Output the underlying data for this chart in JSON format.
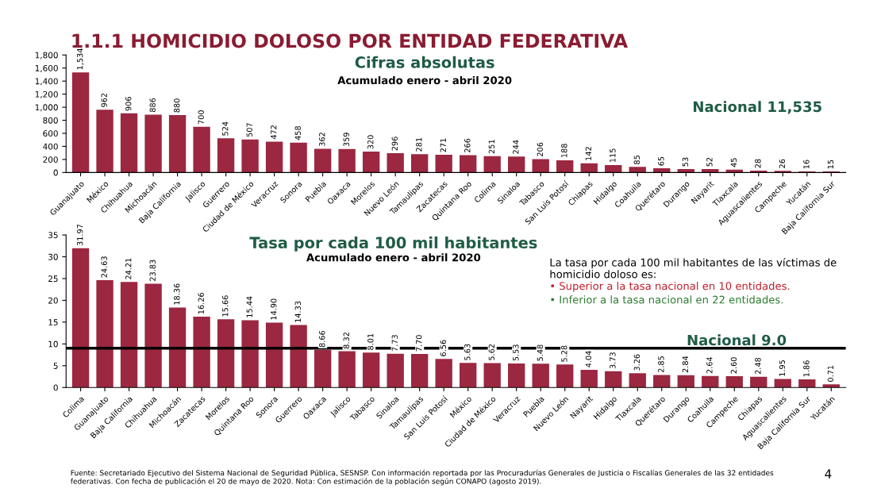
{
  "chart_data": [
    {
      "type": "bar",
      "title": "1.1.1 HOMICIDIO DOLOSO POR ENTIDAD FEDERATIVA",
      "subtitle": "Cifras absolutas",
      "annotations": [
        "Acumulado enero - abril 2020",
        "Nacional 11,535"
      ],
      "categories": [
        "Guanajuato",
        "México",
        "Chihuahua",
        "Michoacán",
        "Baja California",
        "Jalisco",
        "Guerrero",
        "Ciudad de México",
        "Veracruz",
        "Sonora",
        "Puebla",
        "Oaxaca",
        "Morelos",
        "Nuevo León",
        "Tamaulipas",
        "Zacatecas",
        "Quintana Roo",
        "Colima",
        "Sinaloa",
        "Tabasco",
        "San Luis Potosí",
        "Chiapas",
        "Hidalgo",
        "Coahuila",
        "Querétaro",
        "Durango",
        "Nayarit",
        "Tlaxcala",
        "Aguascalientes",
        "Campeche",
        "Yucatán",
        "Baja California Sur"
      ],
      "values": [
        1534,
        962,
        906,
        886,
        880,
        700,
        524,
        507,
        472,
        458,
        362,
        359,
        320,
        296,
        281,
        271,
        266,
        251,
        244,
        206,
        188,
        142,
        115,
        85,
        65,
        53,
        52,
        45,
        28,
        26,
        16,
        15
      ],
      "value_labels": [
        "1,534",
        "962",
        "906",
        "886",
        "880",
        "700",
        "524",
        "507",
        "472",
        "458",
        "362",
        "359",
        "320",
        "296",
        "281",
        "271",
        "266",
        "251",
        "244",
        "206",
        "188",
        "142",
        "115",
        "85",
        "65",
        "53",
        "52",
        "45",
        "28",
        "26",
        "16",
        "15"
      ],
      "color": "#9b2740",
      "ylim": [
        0,
        1800
      ],
      "yticks": [
        0,
        200,
        400,
        600,
        800,
        {
          "value": 1000,
          "label": "1,000"
        },
        {
          "value": 1200,
          "label": "1,200"
        },
        {
          "value": 1400,
          "label": "1,400"
        },
        {
          "value": 1600,
          "label": "1,600"
        },
        {
          "value": 1800,
          "label": "1,800"
        }
      ],
      "grid": false,
      "legend": false
    },
    {
      "type": "bar",
      "title": "Tasa por cada 100 mil habitantes",
      "annotations": [
        "Acumulado enero - abril 2020",
        "La tasa por cada 100 mil habitantes de las víctimas de homicidio doloso es:",
        "• Superior a la tasa nacional en 10 entidades.",
        "• Inferior a la tasa nacional en 22 entidades.",
        "Fuente: Secretariado Ejecutivo del Sistema Nacional de Seguridad Pública, SESNSP. Con información reportada por las Procuradurías Generales de Justicia o Fiscalías Generales de las 32 entidades federativas. Con fecha de publicación el 20 de mayo de 2020. Nota: Con estimación de la población según CONAPO (agosto 2019).",
        "4"
      ],
      "categories": [
        "Colima",
        "Guanajuato",
        "Baja California",
        "Chihuahua",
        "Michoacán",
        "Zacatecas",
        "Morelos",
        "Quintana Roo",
        "Sonora",
        "Guerrero",
        "Oaxaca",
        "Jalisco",
        "Tabasco",
        "Sinaloa",
        "Tamaulipas",
        "San Luis Potosí",
        "México",
        "Ciudad de México",
        "Veracruz",
        "Puebla",
        "Nuevo León",
        "Nayarit",
        "Hidalgo",
        "Tlaxcala",
        "Querétaro",
        "Durango",
        "Coahuila",
        "Campeche",
        "Chiapas",
        "Aguascalientes",
        "Baja California Sur",
        "Yucatán"
      ],
      "values": [
        31.97,
        24.63,
        24.21,
        23.83,
        18.36,
        16.26,
        15.66,
        15.44,
        14.9,
        14.33,
        8.66,
        8.32,
        8.01,
        7.73,
        7.7,
        6.56,
        5.63,
        5.62,
        5.53,
        5.48,
        5.28,
        4.04,
        3.73,
        3.26,
        2.85,
        2.84,
        2.64,
        2.6,
        2.48,
        1.95,
        1.86,
        0.71
      ],
      "value_labels": [
        "31.97",
        "24.63",
        "24.21",
        "23.83",
        "18.36",
        "16.26",
        "15.66",
        "15.44",
        "14.90",
        "14.33",
        "8.66",
        "8.32",
        "8.01",
        "7.73",
        "7.70",
        "6.56",
        "5.63",
        "5.62",
        "5.53",
        "5.48",
        "5.28",
        "4.04",
        "3.73",
        "3.26",
        "2.85",
        "2.84",
        "2.64",
        "2.60",
        "2.48",
        "1.95",
        "1.86",
        "0.71"
      ],
      "color": "#9b2740",
      "ylim": [
        0,
        35
      ],
      "yticks": [
        0,
        5,
        10,
        15,
        20,
        25,
        30,
        35
      ],
      "ref_lines": [
        {
          "axis": "y",
          "value": 9.0,
          "label": "Nacional 9.0",
          "color": "#000000",
          "line_style": "solid"
        }
      ],
      "grid": false,
      "legend": false
    }
  ]
}
